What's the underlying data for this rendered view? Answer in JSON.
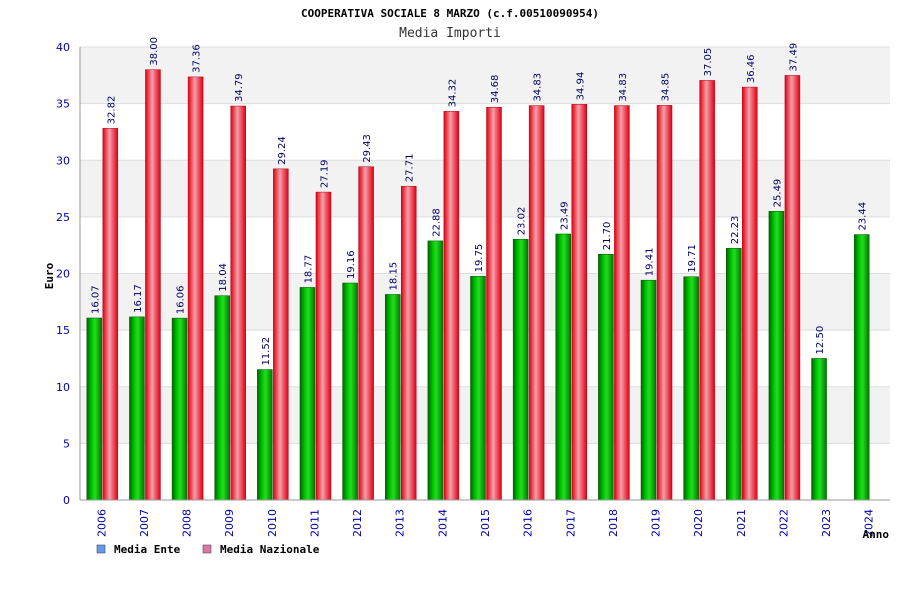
{
  "chart_data": {
    "type": "bar",
    "title": "COOPERATIVA SOCIALE 8 MARZO (c.f.00510090954)",
    "subtitle": "Media Importi",
    "xlabel": "Anno",
    "ylabel": "Euro",
    "ylim": [
      0,
      40
    ],
    "yticks": [
      0,
      5,
      10,
      15,
      20,
      25,
      30,
      35,
      40
    ],
    "grid": true,
    "legend_position": "bottom-left",
    "categories": [
      "2006",
      "2007",
      "2008",
      "2009",
      "2010",
      "2011",
      "2012",
      "2013",
      "2014",
      "2015",
      "2016",
      "2017",
      "2018",
      "2019",
      "2020",
      "2021",
      "2022",
      "2023",
      "2024"
    ],
    "series": [
      {
        "name": "Media Ente",
        "color": "#00aa00",
        "legend_color": "#6699ee",
        "values": [
          16.07,
          16.17,
          16.06,
          18.04,
          11.52,
          18.77,
          19.16,
          18.15,
          22.88,
          19.75,
          23.02,
          23.49,
          21.7,
          19.41,
          19.71,
          22.23,
          25.49,
          12.5,
          23.44
        ],
        "labels": [
          "16.07",
          "16.17",
          "16.06",
          "18.04",
          "11.52",
          "18.77",
          "19.16",
          "18.15",
          "22.88",
          "19.75",
          "23.02",
          "23.49",
          "21.70",
          "19.41",
          "19.71",
          "22.23",
          "25.49",
          "12.50",
          "23.44"
        ]
      },
      {
        "name": "Media Nazionale",
        "color": "#ee1122",
        "legend_color": "#dd77aa",
        "values": [
          32.82,
          38.0,
          37.36,
          34.79,
          29.24,
          27.19,
          29.43,
          27.71,
          34.32,
          34.68,
          34.83,
          34.94,
          34.83,
          34.85,
          37.05,
          36.46,
          37.49,
          null,
          null
        ],
        "labels": [
          "32.82",
          "38.00",
          "37.36",
          "34.79",
          "29.24",
          "27.19",
          "29.43",
          "27.71",
          "34.32",
          "34.68",
          "34.83",
          "34.94",
          "34.83",
          "34.85",
          "37.05",
          "36.46",
          "37.49",
          null,
          null
        ]
      }
    ]
  }
}
